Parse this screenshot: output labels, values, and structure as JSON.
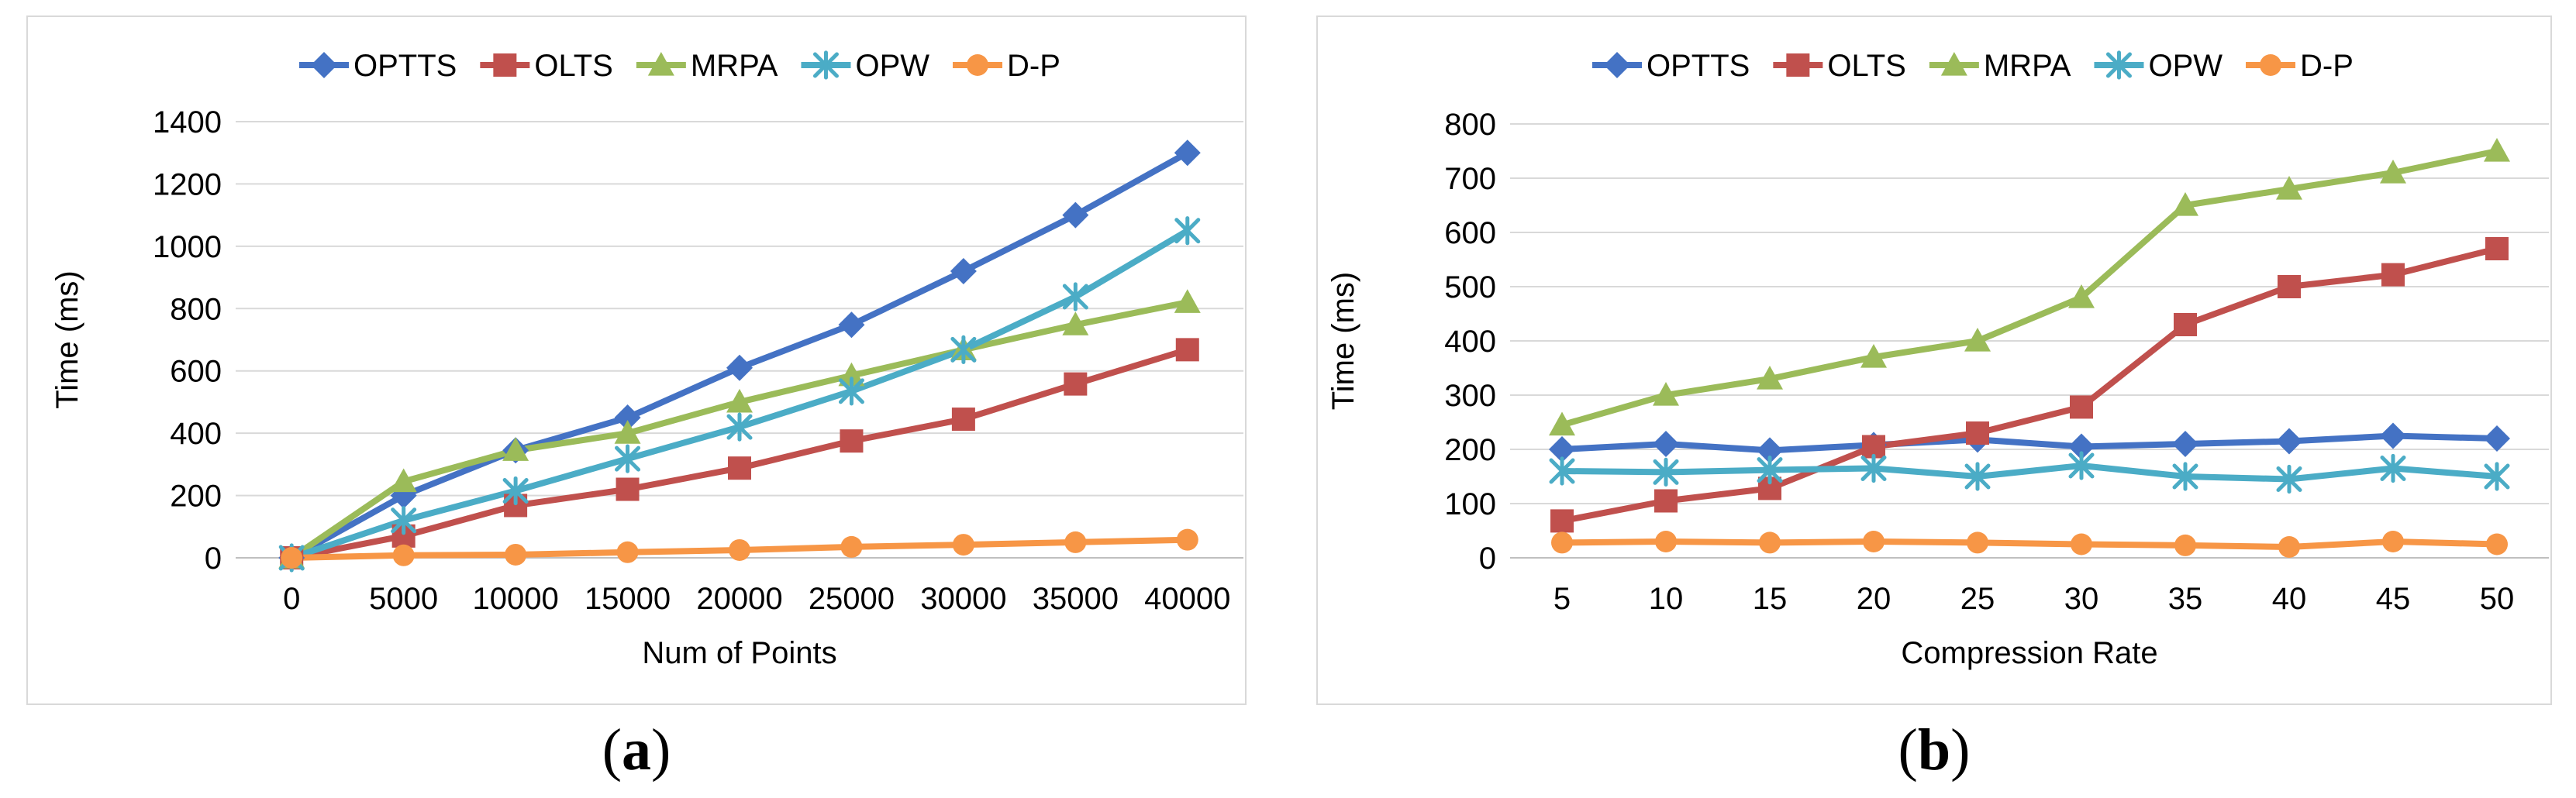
{
  "chart_data": [
    {
      "type": "line",
      "title": "",
      "xlabel": "Num of Points",
      "ylabel": "Time (ms)",
      "categories": [
        "0",
        "5000",
        "10000",
        "15000",
        "20000",
        "25000",
        "30000",
        "35000",
        "40000"
      ],
      "ylim": [
        0,
        1400
      ],
      "yticks": [
        0,
        200,
        400,
        600,
        800,
        1000,
        1200,
        1400
      ],
      "grid": true,
      "legend_position": "top",
      "series": [
        {
          "name": "OPTTS",
          "marker": "diamond",
          "color": "#4472c4",
          "values": [
            0,
            200,
            345,
            450,
            610,
            748,
            920,
            1100,
            1300
          ]
        },
        {
          "name": "OLTS",
          "marker": "square",
          "color": "#c0504d",
          "values": [
            0,
            70,
            168,
            220,
            288,
            375,
            445,
            558,
            668
          ]
        },
        {
          "name": "MRPA",
          "marker": "triangle",
          "color": "#9bbb59",
          "values": [
            0,
            245,
            345,
            400,
            500,
            585,
            668,
            748,
            820
          ]
        },
        {
          "name": "OPW",
          "marker": "asterisk",
          "color": "#4bacc6",
          "values": [
            0,
            120,
            215,
            318,
            420,
            535,
            668,
            838,
            1050
          ]
        },
        {
          "name": "D-P",
          "marker": "circle",
          "color": "#f79646",
          "values": [
            0,
            8,
            10,
            18,
            25,
            35,
            42,
            50,
            58
          ]
        }
      ]
    },
    {
      "type": "line",
      "title": "",
      "xlabel": "Compression Rate",
      "ylabel": "Time (ms)",
      "categories": [
        "5",
        "10",
        "15",
        "20",
        "25",
        "30",
        "35",
        "40",
        "45",
        "50"
      ],
      "ylim": [
        0,
        800
      ],
      "yticks": [
        0,
        100,
        200,
        300,
        400,
        500,
        600,
        700,
        800
      ],
      "grid": true,
      "legend_position": "top",
      "series": [
        {
          "name": "OPTTS",
          "marker": "diamond",
          "color": "#4472c4",
          "values": [
            200,
            210,
            198,
            208,
            218,
            205,
            210,
            215,
            225,
            220
          ]
        },
        {
          "name": "OLTS",
          "marker": "square",
          "color": "#c0504d",
          "values": [
            68,
            105,
            128,
            205,
            230,
            278,
            430,
            500,
            522,
            570
          ]
        },
        {
          "name": "MRPA",
          "marker": "triangle",
          "color": "#9bbb59",
          "values": [
            245,
            300,
            330,
            370,
            400,
            480,
            650,
            680,
            710,
            750
          ]
        },
        {
          "name": "OPW",
          "marker": "asterisk",
          "color": "#4bacc6",
          "values": [
            160,
            158,
            162,
            165,
            150,
            170,
            150,
            145,
            165,
            150
          ]
        },
        {
          "name": "D-P",
          "marker": "circle",
          "color": "#f79646",
          "values": [
            28,
            30,
            28,
            30,
            28,
            25,
            23,
            20,
            30,
            25
          ]
        }
      ]
    }
  ],
  "captions": {
    "a_open": "(",
    "a_letter": "a",
    "a_close": ")",
    "b_open": "(",
    "b_letter": "b",
    "b_close": ")"
  }
}
